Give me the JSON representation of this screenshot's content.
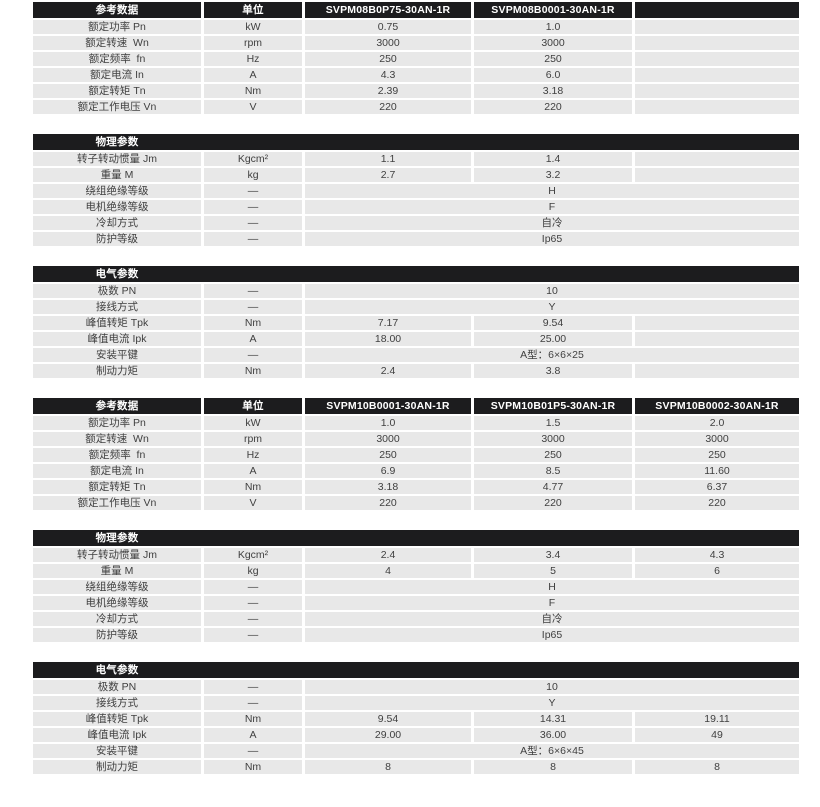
{
  "style": {
    "header_bg": "#1c1c1e",
    "row_bg": "#e8e8e8",
    "header_text_color": "#ffffff",
    "cell_text_color": "#404040",
    "page_bg": "#ffffff"
  },
  "tables": [
    {
      "kind": "models",
      "name": "reference-data-svpm08",
      "header": {
        "label": "参考数据",
        "unit": "单位",
        "models": [
          "SVPM08B0P75-30AN-1R",
          "SVPM08B0001-30AN-1R",
          ""
        ]
      },
      "rows": [
        {
          "label": "额定功率 Pn",
          "unit": "kW",
          "values": [
            "0.75",
            "1.0",
            ""
          ]
        },
        {
          "label": "额定转速  Wn",
          "unit": "rpm",
          "values": [
            "3000",
            "3000",
            ""
          ]
        },
        {
          "label": "额定频率  fn",
          "unit": "Hz",
          "values": [
            "250",
            "250",
            ""
          ]
        },
        {
          "label": "额定电流 In",
          "unit": "A",
          "values": [
            "4.3",
            "6.0",
            ""
          ]
        },
        {
          "label": "额定转矩 Tn",
          "unit": "Nm",
          "values": [
            "2.39",
            "3.18",
            ""
          ]
        },
        {
          "label": "额定工作电压 Vn",
          "unit": "V",
          "values": [
            "220",
            "220",
            ""
          ]
        }
      ]
    },
    {
      "kind": "section",
      "name": "physical-params-svpm08",
      "title": "物理参数",
      "rows": [
        {
          "label": "转子转动惯量 Jm",
          "unit": "Kgcm²",
          "values": [
            "1.1",
            "1.4",
            ""
          ]
        },
        {
          "label": "重量 M",
          "unit": "kg",
          "values": [
            "2.7",
            "3.2",
            ""
          ]
        },
        {
          "label": "绕组绝缘等级",
          "unit": "—",
          "merged": "H"
        },
        {
          "label": "电机绝缘等级",
          "unit": "—",
          "merged": "F"
        },
        {
          "label": "冷却方式",
          "unit": "—",
          "merged": "自冷"
        },
        {
          "label": "防护等级",
          "unit": "—",
          "merged": "Ip65"
        }
      ]
    },
    {
      "kind": "section",
      "name": "electrical-params-svpm08",
      "title": "电气参数",
      "rows": [
        {
          "label": "极数 PN",
          "unit": "—",
          "merged": "10"
        },
        {
          "label": "接线方式",
          "unit": "—",
          "merged": "Y"
        },
        {
          "label": "峰值转矩 Tpk",
          "unit": "Nm",
          "values": [
            "7.17",
            "9.54",
            ""
          ]
        },
        {
          "label": "峰值电流 Ipk",
          "unit": "A",
          "values": [
            "18.00",
            "25.00",
            ""
          ]
        },
        {
          "label": "安装平键",
          "unit": "—",
          "merged": "A型：6×6×25"
        },
        {
          "label": "制动力矩",
          "unit": "Nm",
          "values": [
            "2.4",
            "3.8",
            ""
          ]
        }
      ]
    },
    {
      "kind": "models",
      "name": "reference-data-svpm10",
      "header": {
        "label": "参考数据",
        "unit": "单位",
        "models": [
          "SVPM10B0001-30AN-1R",
          "SVPM10B01P5-30AN-1R",
          "SVPM10B0002-30AN-1R"
        ]
      },
      "rows": [
        {
          "label": "额定功率 Pn",
          "unit": "kW",
          "values": [
            "1.0",
            "1.5",
            "2.0"
          ]
        },
        {
          "label": "额定转速  Wn",
          "unit": "rpm",
          "values": [
            "3000",
            "3000",
            "3000"
          ]
        },
        {
          "label": "额定频率  fn",
          "unit": "Hz",
          "values": [
            "250",
            "250",
            "250"
          ]
        },
        {
          "label": "额定电流 In",
          "unit": "A",
          "values": [
            "6.9",
            "8.5",
            "11.60"
          ]
        },
        {
          "label": "额定转矩 Tn",
          "unit": "Nm",
          "values": [
            "3.18",
            "4.77",
            "6.37"
          ]
        },
        {
          "label": "额定工作电压 Vn",
          "unit": "V",
          "values": [
            "220",
            "220",
            "220"
          ]
        }
      ]
    },
    {
      "kind": "section",
      "name": "physical-params-svpm10",
      "title": "物理参数",
      "rows": [
        {
          "label": "转子转动惯量 Jm",
          "unit": "Kgcm²",
          "values": [
            "2.4",
            "3.4",
            "4.3"
          ]
        },
        {
          "label": "重量 M",
          "unit": "kg",
          "values": [
            "4",
            "5",
            "6"
          ]
        },
        {
          "label": "绕组绝缘等级",
          "unit": "—",
          "merged": "H"
        },
        {
          "label": "电机绝缘等级",
          "unit": "—",
          "merged": "F"
        },
        {
          "label": "冷却方式",
          "unit": "—",
          "merged": "自冷"
        },
        {
          "label": "防护等级",
          "unit": "—",
          "merged": "Ip65"
        }
      ]
    },
    {
      "kind": "section",
      "name": "electrical-params-svpm10",
      "title": "电气参数",
      "rows": [
        {
          "label": "极数 PN",
          "unit": "—",
          "merged": "10"
        },
        {
          "label": "接线方式",
          "unit": "—",
          "merged": "Y"
        },
        {
          "label": "峰值转矩 Tpk",
          "unit": "Nm",
          "values": [
            "9.54",
            "14.31",
            "19.11"
          ]
        },
        {
          "label": "峰值电流 Ipk",
          "unit": "A",
          "values": [
            "29.00",
            "36.00",
            "49"
          ]
        },
        {
          "label": "安装平键",
          "unit": "—",
          "merged": "A型：6×6×45"
        },
        {
          "label": "制动力矩",
          "unit": "Nm",
          "values": [
            "8",
            "8",
            "8"
          ]
        }
      ]
    }
  ]
}
